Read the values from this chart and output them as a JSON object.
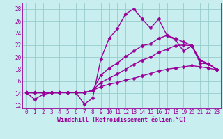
{
  "xlabel": "Windchill (Refroidissement éolien,°C)",
  "xlim": [
    -0.5,
    23.5
  ],
  "ylim": [
    11.5,
    29
  ],
  "yticks": [
    12,
    14,
    16,
    18,
    20,
    22,
    24,
    26,
    28
  ],
  "xticks": [
    0,
    1,
    2,
    3,
    4,
    5,
    6,
    7,
    8,
    9,
    10,
    11,
    12,
    13,
    14,
    15,
    16,
    17,
    18,
    19,
    20,
    21,
    22,
    23
  ],
  "background_color": "#c8eef0",
  "grid_color": "#99cccc",
  "line_color": "#990099",
  "series": [
    [
      14.1,
      13.0,
      13.8,
      14.1,
      14.1,
      14.1,
      14.1,
      12.2,
      13.2,
      19.7,
      23.1,
      24.7,
      27.2,
      28.0,
      26.3,
      24.8,
      26.3,
      23.6,
      22.9,
      21.0,
      21.9,
      19.0,
      18.9,
      17.9
    ],
    [
      14.1,
      14.1,
      14.1,
      14.1,
      14.1,
      14.2,
      14.1,
      14.1,
      14.5,
      17.0,
      18.2,
      19.0,
      20.1,
      21.0,
      21.9,
      22.2,
      23.1,
      23.6,
      23.1,
      22.5,
      21.9,
      19.5,
      18.9,
      18.0
    ],
    [
      14.1,
      14.1,
      14.1,
      14.1,
      14.1,
      14.2,
      14.1,
      14.1,
      14.5,
      15.8,
      16.5,
      17.2,
      18.0,
      18.8,
      19.5,
      20.0,
      20.8,
      21.3,
      21.9,
      22.0,
      21.9,
      19.5,
      18.9,
      18.0
    ],
    [
      14.1,
      14.1,
      14.1,
      14.1,
      14.1,
      14.2,
      14.1,
      14.1,
      14.5,
      15.1,
      15.5,
      15.8,
      16.2,
      16.5,
      16.9,
      17.3,
      17.7,
      18.0,
      18.2,
      18.4,
      18.6,
      18.4,
      18.2,
      17.9
    ]
  ],
  "marker": "D",
  "markersize": 2.5,
  "linewidth": 1.0,
  "tick_fontsize": 5.5,
  "xlabel_fontsize": 6.0
}
